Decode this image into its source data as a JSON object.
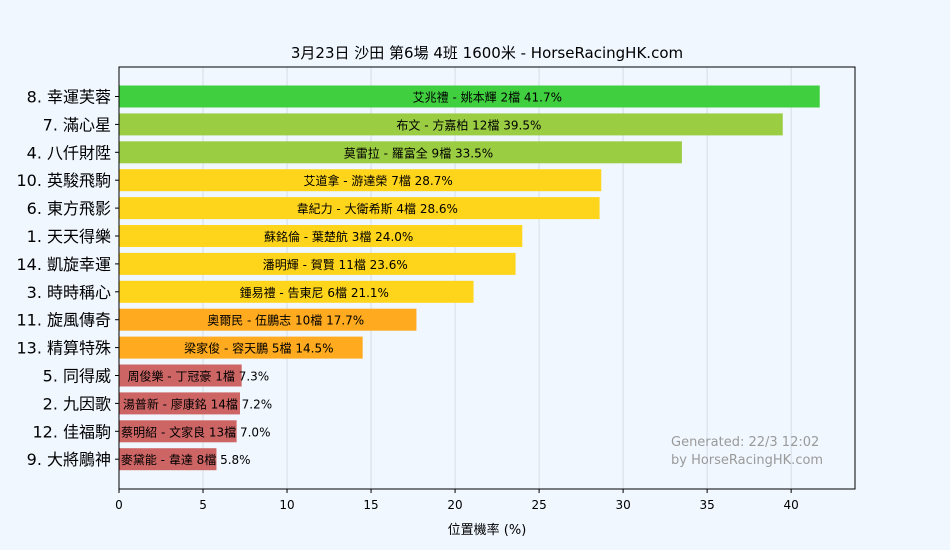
{
  "chart_data": {
    "type": "bar",
    "orientation": "horizontal",
    "title": "3月23日  沙田  第6場  4班  1600米 - HorseRacingHK.com",
    "xlabel": "位置機率 (%)",
    "ylabel": "",
    "xlim": [
      0,
      43.8
    ],
    "xticks": [
      0,
      5,
      10,
      15,
      20,
      25,
      30,
      35,
      40
    ],
    "grid": "vertical",
    "categories": [
      "8. 幸運芙蓉",
      "7. 滿心星",
      "4. 八仟財陞",
      "10. 英駿飛駒",
      "6. 東方飛影",
      "1. 天天得樂",
      "14. 凱旋幸運",
      "3. 時時稱心",
      "11. 旋風傳奇",
      "13. 精算特殊",
      "5. 同得威",
      "2. 九因歌",
      "12. 佳福駒",
      "9. 大將鵰神"
    ],
    "values": [
      41.7,
      39.5,
      33.5,
      28.7,
      28.6,
      24.0,
      23.6,
      21.1,
      17.7,
      14.5,
      7.3,
      7.2,
      7.0,
      5.8
    ],
    "bar_labels": [
      "艾兆禮 - 姚本輝 2檔  41.7%",
      "布文 - 方嘉柏 12檔  39.5%",
      "莫雷拉 - 羅富全 9檔  33.5%",
      "艾道拿 - 游達榮 7檔  28.7%",
      "韋紀力 - 大衛希斯 4檔  28.6%",
      "蘇銘倫 - 葉楚航 3檔  24.0%",
      "潘明輝 - 賀賢 11檔  23.6%",
      "鍾易禮 - 告東尼 6檔  21.1%",
      "奧爾民 - 伍鵬志 10檔  17.7%",
      "梁家俊 - 容天鵬 5檔  14.5%",
      "周俊樂 - 丁冠豪 1檔  7.3%",
      "湯普新 - 廖康銘 14檔  7.2%",
      "蔡明紹 - 文家良 13檔  7.0%",
      "麥黛能 - 韋達 8檔  5.8%"
    ],
    "colors": [
      "#3fcf3f",
      "#9bcd43",
      "#9bcd43",
      "#ffd51c",
      "#ffd51c",
      "#ffd51c",
      "#ffd51c",
      "#ffd51c",
      "#ffaa1f",
      "#ffaa1f",
      "#cd6565",
      "#cd6565",
      "#cd6565",
      "#cd6565"
    ],
    "watermark": [
      "Generated: 22/3 12:02",
      "by HorseRacingHK.com"
    ],
    "background": "#f0f7ff",
    "plot_background": "#f0f7ff"
  }
}
